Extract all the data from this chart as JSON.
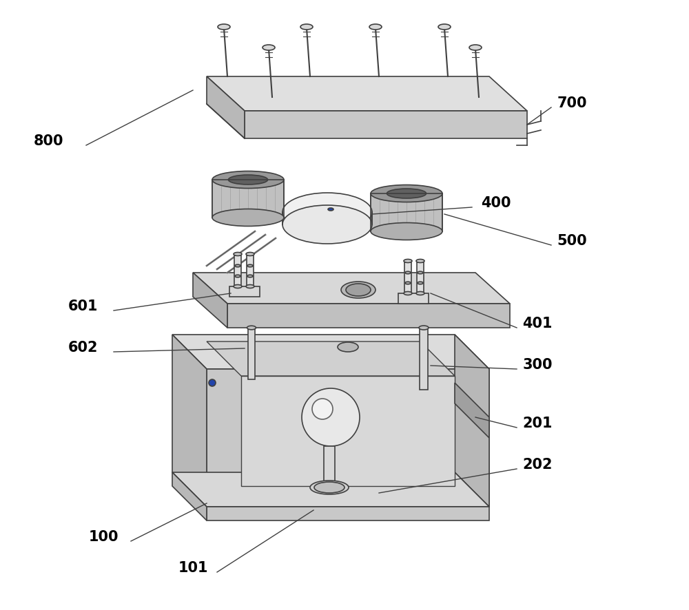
{
  "bg_color": "#ffffff",
  "line_color": "#404040",
  "fill_light": "#e8e8e8",
  "fill_medium": "#d0d0d0",
  "fill_dark": "#b0b0b0",
  "fill_side": "#c8c8c8"
}
